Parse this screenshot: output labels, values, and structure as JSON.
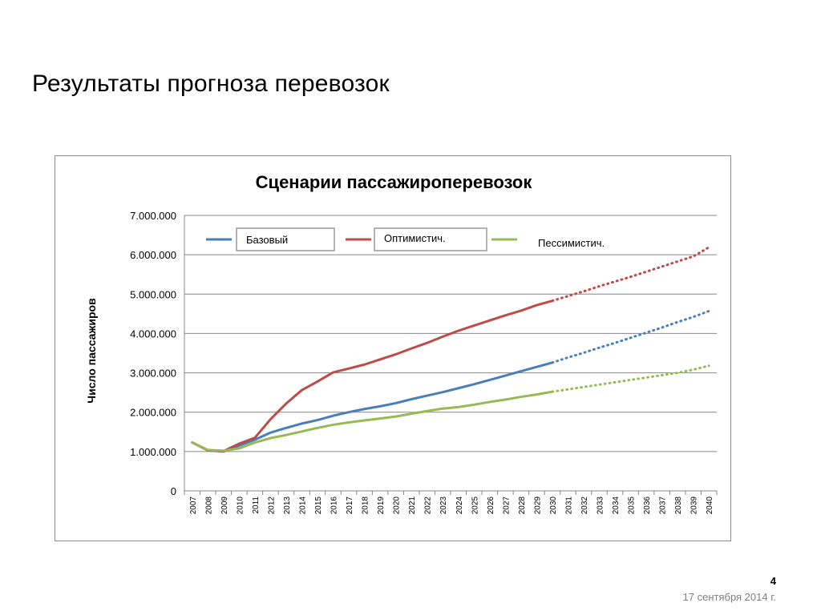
{
  "slide": {
    "title": "Результаты прогноза перевозок",
    "page_number": "4",
    "date": "17 сентября 2014 г."
  },
  "colors": {
    "base": "#4a7ebb",
    "optimistic": "#be4b48",
    "pessimistic": "#98b954",
    "grid": "#868686",
    "frame": "#8c8c8c"
  },
  "chart_data": {
    "type": "line",
    "title": "Сценарии пассажироперевозок",
    "xlabel": "",
    "ylabel": "Число пассажиров",
    "ylim": [
      0,
      7000000
    ],
    "yticks": [
      0,
      1000000,
      2000000,
      3000000,
      4000000,
      5000000,
      6000000,
      7000000
    ],
    "ytick_labels": [
      "0",
      "1.000.000",
      "2.000.000",
      "3.000.000",
      "4.000.000",
      "5.000.000",
      "6.000.000",
      "7.000.000"
    ],
    "grid": true,
    "legend": "top",
    "x": [
      "2007",
      "2008",
      "2009",
      "2010",
      "2011",
      "2012",
      "2013",
      "2014",
      "2015",
      "2016",
      "2017",
      "2018",
      "2019",
      "2020",
      "2021",
      "2022",
      "2023",
      "2024",
      "2025",
      "2026",
      "2027",
      "2028",
      "2029",
      "2030",
      "2031",
      "2032",
      "2033",
      "2034",
      "2035",
      "2036",
      "2037",
      "2038",
      "2039",
      "2040"
    ],
    "forecast_line_style": "solid up to 2030, dotted from 2030 to 2040",
    "series": [
      {
        "name": "Базовый",
        "color_key": "base",
        "legend_boxed": true,
        "values": [
          1230000,
          1030000,
          1000000,
          1150000,
          1300000,
          1480000,
          1600000,
          1710000,
          1800000,
          1910000,
          2000000,
          2080000,
          2150000,
          2230000,
          2330000,
          2420000,
          2510000,
          2610000,
          2710000,
          2820000,
          2930000,
          3040000,
          3150000,
          3260000,
          3390000,
          3510000,
          3640000,
          3760000,
          3890000,
          4020000,
          4150000,
          4290000,
          4420000,
          4570000
        ]
      },
      {
        "name": "Оптимистич.",
        "color_key": "optimistic",
        "legend_boxed": true,
        "values": [
          1230000,
          1030000,
          1010000,
          1200000,
          1350000,
          1820000,
          2220000,
          2560000,
          2780000,
          3010000,
          3110000,
          3210000,
          3340000,
          3470000,
          3620000,
          3760000,
          3920000,
          4070000,
          4200000,
          4330000,
          4460000,
          4580000,
          4720000,
          4830000,
          4950000,
          5070000,
          5200000,
          5320000,
          5440000,
          5570000,
          5700000,
          5830000,
          5960000,
          6190000
        ]
      },
      {
        "name": "Пессимистич.",
        "color_key": "pessimistic",
        "legend_boxed": false,
        "values": [
          1230000,
          1040000,
          1020000,
          1080000,
          1230000,
          1340000,
          1420000,
          1510000,
          1600000,
          1680000,
          1740000,
          1790000,
          1840000,
          1890000,
          1960000,
          2030000,
          2090000,
          2130000,
          2190000,
          2260000,
          2320000,
          2390000,
          2450000,
          2520000,
          2580000,
          2640000,
          2700000,
          2760000,
          2820000,
          2880000,
          2940000,
          3000000,
          3080000,
          3180000
        ]
      }
    ]
  }
}
